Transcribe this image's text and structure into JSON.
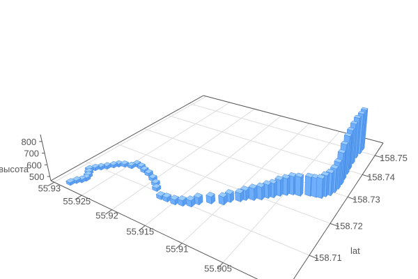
{
  "chart_data": {
    "type": "bar",
    "dimension": "3d",
    "title": "",
    "x_axis": {
      "name": "",
      "ticks": [
        "55.93",
        "55.925",
        "55.92",
        "55.915",
        "55.91",
        "55.905"
      ],
      "range": [
        55.898,
        55.931
      ]
    },
    "y_axis": {
      "name": "lat",
      "ticks": [
        "158.71",
        "158.72",
        "158.73",
        "158.74",
        "158.75"
      ],
      "range": [
        158.7,
        158.758
      ]
    },
    "z_axis": {
      "name": "высота",
      "ticks": [
        "500",
        "600",
        "700",
        "800"
      ],
      "range": [
        464,
        860
      ]
    },
    "grid": true,
    "colors": {
      "bar": "#6eaefa",
      "bar_top": "#9accff",
      "bar_side": "#5a9ef2",
      "bar_edge": "#3f85e0",
      "axis": "#555555",
      "grid": "#dddddd"
    },
    "points": [
      [
        55.9281,
        158.7022,
        487
      ],
      [
        55.9278,
        158.7034,
        488
      ],
      [
        55.9274,
        158.7042,
        488
      ],
      [
        55.9272,
        158.7051,
        489
      ],
      [
        55.9275,
        158.7061,
        489
      ],
      [
        55.928,
        158.7071,
        488
      ],
      [
        55.9285,
        158.708,
        488
      ],
      [
        55.9281,
        158.7091,
        489
      ],
      [
        55.9276,
        158.71,
        490
      ],
      [
        55.9271,
        158.711,
        490
      ],
      [
        55.9266,
        158.7122,
        489
      ],
      [
        55.9262,
        158.7131,
        489
      ],
      [
        55.9255,
        158.7138,
        489
      ],
      [
        55.9245,
        158.7142,
        490
      ],
      [
        55.9242,
        158.7154,
        490
      ],
      [
        55.9233,
        158.7152,
        489
      ],
      [
        55.9224,
        158.7145,
        489
      ],
      [
        55.9214,
        158.714,
        490
      ],
      [
        55.9202,
        158.713,
        490
      ],
      [
        55.9192,
        158.7119,
        489
      ],
      [
        55.9184,
        158.7106,
        490
      ],
      [
        55.9169,
        158.7089,
        492
      ],
      [
        55.916,
        158.709,
        498
      ],
      [
        55.9149,
        158.7091,
        503
      ],
      [
        55.914,
        158.7096,
        508
      ],
      [
        55.9131,
        158.7103,
        514
      ],
      [
        55.9126,
        158.7117,
        520
      ],
      [
        55.9115,
        158.7133,
        520
      ],
      [
        55.9102,
        158.7144,
        525
      ],
      [
        55.9098,
        158.7158,
        531
      ],
      [
        55.9089,
        158.7171,
        532
      ],
      [
        55.9085,
        158.7181,
        543
      ],
      [
        55.9077,
        158.719,
        560
      ],
      [
        55.907,
        158.72,
        566
      ],
      [
        55.9065,
        158.7212,
        573
      ],
      [
        55.906,
        158.722,
        579
      ],
      [
        55.9055,
        158.7232,
        596
      ],
      [
        55.9049,
        158.7242,
        602
      ],
      [
        55.9043,
        158.7251,
        614
      ],
      [
        55.9035,
        158.7255,
        619
      ],
      [
        55.9025,
        158.7266,
        619
      ],
      [
        55.9018,
        158.7269,
        619
      ],
      [
        55.9012,
        158.7272,
        624
      ],
      [
        55.9009,
        158.7282,
        636
      ],
      [
        55.9005,
        158.7291,
        649
      ],
      [
        55.9003,
        158.7306,
        662
      ],
      [
        55.9002,
        158.7322,
        689
      ],
      [
        55.9002,
        158.7342,
        734
      ],
      [
        55.9003,
        158.7363,
        770
      ],
      [
        55.9004,
        158.7389,
        800
      ],
      [
        55.9005,
        158.7412,
        815
      ],
      [
        55.9006,
        158.744,
        830
      ],
      [
        55.9007,
        158.747,
        840
      ],
      [
        55.9006,
        158.7494,
        848
      ],
      [
        55.9006,
        158.7515,
        855
      ]
    ]
  }
}
